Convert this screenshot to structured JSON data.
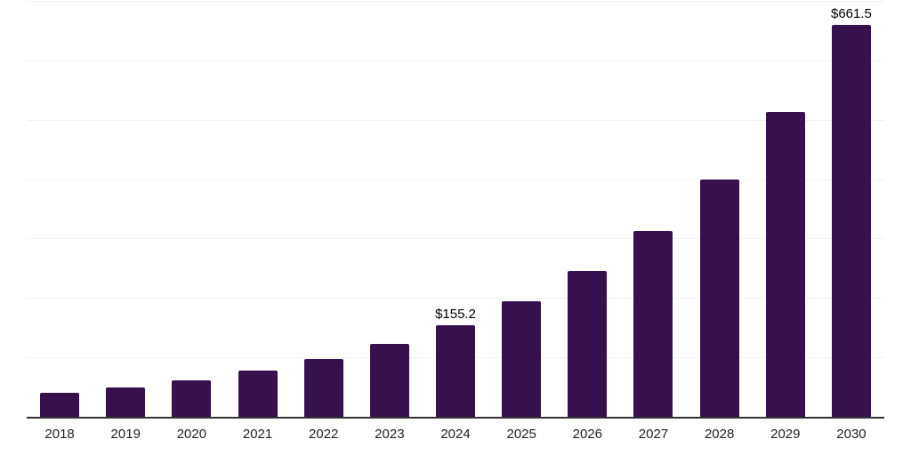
{
  "chart_data": {
    "type": "bar",
    "title": "",
    "xlabel": "",
    "ylabel": "",
    "categories": [
      "2018",
      "2019",
      "2020",
      "2021",
      "2022",
      "2023",
      "2024",
      "2025",
      "2026",
      "2027",
      "2028",
      "2029",
      "2030"
    ],
    "values": [
      41.9,
      50.2,
      63.5,
      79.7,
      98.7,
      124.5,
      155.2,
      195.5,
      247.0,
      314.4,
      400.6,
      515.0,
      661.5
    ],
    "data_labels": [
      null,
      null,
      null,
      null,
      null,
      null,
      "$155.2",
      null,
      null,
      null,
      null,
      null,
      "$661.5"
    ],
    "ylim": [
      0,
      700
    ],
    "grid_step": 100,
    "grid": true,
    "legend": false,
    "bar_color": "#36114D",
    "gridline_color": "#f2f2f2",
    "axis_line_color": "#333333",
    "tick_label_color": "#222222",
    "data_label_color": "#000000",
    "background_color": "#ffffff"
  }
}
